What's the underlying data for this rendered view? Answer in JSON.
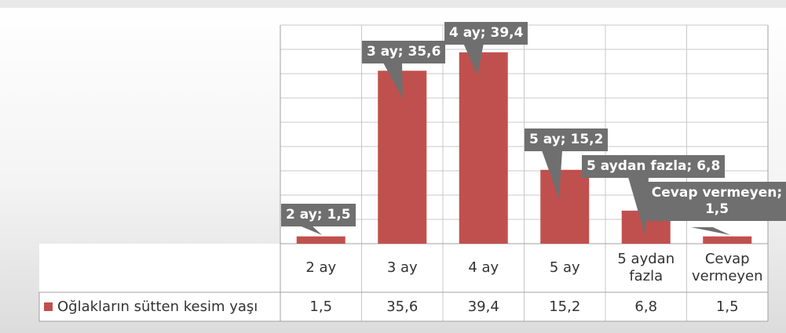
{
  "chart_data": {
    "type": "bar",
    "categories": [
      "2 ay",
      "3 ay",
      "4 ay",
      "5 ay",
      "5 aydan fazla",
      "Cevap vermeyen"
    ],
    "series": [
      {
        "name": "Oğlakların sütten kesim yaşı",
        "values": [
          1.5,
          35.6,
          39.4,
          15.2,
          6.8,
          1.5
        ],
        "color": "#c0504d"
      }
    ],
    "data_labels": [
      "2 ay; 1,5",
      "3 ay; 35,6",
      "4 ay; 39,4",
      "5 ay; 15,2",
      "5 aydan fazla; 6,8",
      "Cevap vermeyen; 1,5"
    ],
    "table_values": [
      "1,5",
      "35,6",
      "39,4",
      "15,2",
      "6,8",
      "1,5"
    ],
    "ylim": [
      0,
      45
    ],
    "grid": true,
    "data_table": true,
    "colors": {
      "bar": "#c0504d",
      "callout": "#6f6f6f",
      "grid": "#c8c8c8",
      "frame": "#dcdcdc"
    }
  }
}
